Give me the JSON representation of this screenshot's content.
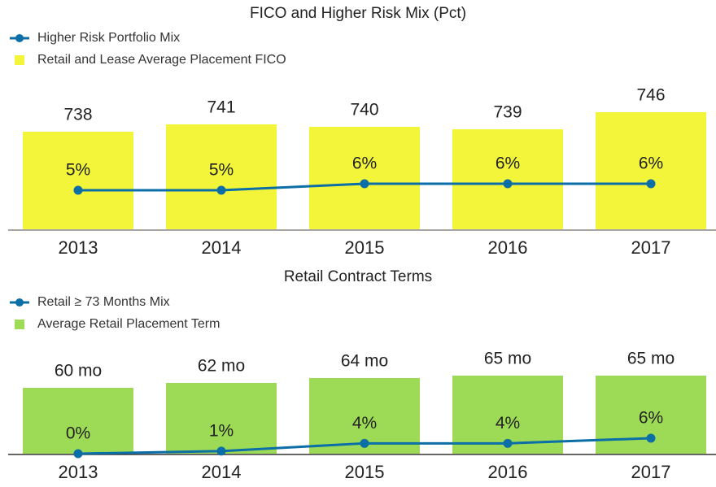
{
  "chart_data": [
    {
      "type": "bar",
      "title": "FICO and Higher Risk Mix (Pct)",
      "categories": [
        "2013",
        "2014",
        "2015",
        "2016",
        "2017"
      ],
      "series": [
        {
          "name": "Higher Risk Portfolio Mix",
          "type": "line",
          "axis": "y2",
          "color": "#0b6ea6",
          "values": [
            5,
            5,
            6,
            6,
            6
          ],
          "value_labels": [
            "5%",
            "5%",
            "6%",
            "6%",
            "6%"
          ]
        },
        {
          "name": "Retail and Lease Average Placement FICO",
          "type": "bar",
          "color": "#f3f53b",
          "values": [
            738,
            741,
            740,
            739,
            746
          ]
        }
      ],
      "ylim": [
        698,
        750
      ],
      "y2lim": [
        -1,
        18.5
      ]
    },
    {
      "type": "bar",
      "title": "Retail Contract Terms",
      "categories": [
        "2013",
        "2014",
        "2015",
        "2016",
        "2017"
      ],
      "series": [
        {
          "name": "Retail ≥ 73 Months Mix",
          "type": "line",
          "axis": "y2",
          "color": "#0b6ea6",
          "values": [
            0,
            1,
            4,
            4,
            6
          ],
          "value_labels": [
            "0%",
            "1%",
            "4%",
            "4%",
            "6%"
          ]
        },
        {
          "name": "Average Retail Placement Term",
          "type": "bar",
          "color": "#9ddb57",
          "values": [
            60,
            62,
            64,
            65,
            65
          ],
          "value_labels": [
            "60 mo",
            "62 mo",
            "64 mo",
            "65 mo",
            "65 mo"
          ]
        }
      ],
      "ylim": [
        33,
        70
      ],
      "y2lim": [
        0,
        35
      ]
    }
  ]
}
